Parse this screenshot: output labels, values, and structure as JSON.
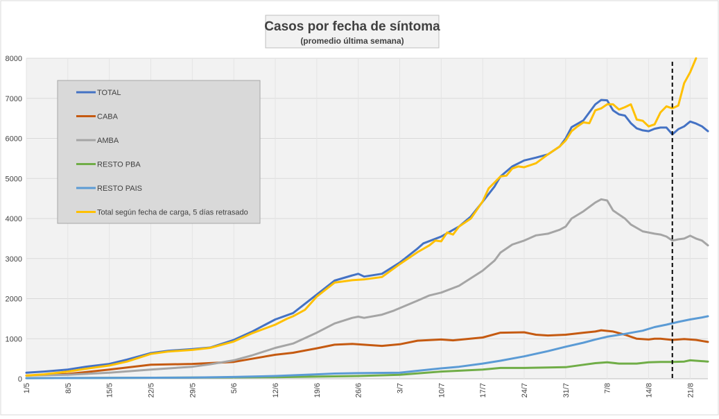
{
  "chart_data": {
    "type": "line",
    "title": "Casos por fecha de síntoma",
    "subtitle": "(promedio última semana)",
    "xlabel": "",
    "ylabel": "",
    "ylim": [
      0,
      8000
    ],
    "yticks": [
      0,
      1000,
      2000,
      3000,
      4000,
      5000,
      6000,
      7000,
      8000
    ],
    "grid": true,
    "legend_position": "top-left",
    "x_start_date": "1/5",
    "num_days": 115,
    "xtick_labels": [
      {
        "day": 0,
        "label": "1/5"
      },
      {
        "day": 7,
        "label": "8/5"
      },
      {
        "day": 14,
        "label": "15/5"
      },
      {
        "day": 21,
        "label": "22/5"
      },
      {
        "day": 28,
        "label": "29/5"
      },
      {
        "day": 35,
        "label": "5/6"
      },
      {
        "day": 42,
        "label": "12/6"
      },
      {
        "day": 49,
        "label": "19/6"
      },
      {
        "day": 56,
        "label": "26/6"
      },
      {
        "day": 63,
        "label": "3/7"
      },
      {
        "day": 70,
        "label": "10/7"
      },
      {
        "day": 77,
        "label": "17/7"
      },
      {
        "day": 84,
        "label": "24/7"
      },
      {
        "day": 91,
        "label": "31/7"
      },
      {
        "day": 98,
        "label": "7/8"
      },
      {
        "day": 105,
        "label": "14/8"
      },
      {
        "day": 112,
        "label": "21/8"
      }
    ],
    "reference_line_day": 109,
    "series": [
      {
        "name": "TOTAL",
        "color": "#4472c4",
        "points": [
          [
            0,
            150
          ],
          [
            3,
            180
          ],
          [
            7,
            230
          ],
          [
            10,
            300
          ],
          [
            14,
            370
          ],
          [
            17,
            480
          ],
          [
            21,
            640
          ],
          [
            24,
            700
          ],
          [
            28,
            740
          ],
          [
            31,
            780
          ],
          [
            35,
            970
          ],
          [
            38,
            1170
          ],
          [
            42,
            1480
          ],
          [
            45,
            1640
          ],
          [
            49,
            2100
          ],
          [
            52,
            2450
          ],
          [
            55,
            2580
          ],
          [
            56,
            2620
          ],
          [
            57,
            2550
          ],
          [
            60,
            2620
          ],
          [
            63,
            2900
          ],
          [
            66,
            3250
          ],
          [
            67,
            3380
          ],
          [
            70,
            3550
          ],
          [
            73,
            3800
          ],
          [
            75,
            4050
          ],
          [
            77,
            4420
          ],
          [
            79,
            4800
          ],
          [
            80,
            5050
          ],
          [
            82,
            5300
          ],
          [
            84,
            5450
          ],
          [
            86,
            5520
          ],
          [
            88,
            5600
          ],
          [
            90,
            5800
          ],
          [
            91,
            6000
          ],
          [
            92,
            6280
          ],
          [
            94,
            6450
          ],
          [
            96,
            6850
          ],
          [
            97,
            6960
          ],
          [
            98,
            6950
          ],
          [
            99,
            6700
          ],
          [
            100,
            6600
          ],
          [
            101,
            6570
          ],
          [
            102,
            6380
          ],
          [
            103,
            6250
          ],
          [
            104,
            6200
          ],
          [
            105,
            6180
          ],
          [
            106,
            6240
          ],
          [
            107,
            6270
          ],
          [
            108,
            6270
          ],
          [
            109,
            6100
          ],
          [
            110,
            6230
          ],
          [
            111,
            6300
          ],
          [
            112,
            6420
          ],
          [
            113,
            6370
          ],
          [
            114,
            6300
          ],
          [
            115,
            6180
          ]
        ]
      },
      {
        "name": "CABA",
        "color": "#c55a11",
        "points": [
          [
            0,
            80
          ],
          [
            7,
            120
          ],
          [
            14,
            230
          ],
          [
            21,
            350
          ],
          [
            28,
            370
          ],
          [
            35,
            420
          ],
          [
            42,
            600
          ],
          [
            45,
            650
          ],
          [
            49,
            760
          ],
          [
            52,
            850
          ],
          [
            55,
            870
          ],
          [
            58,
            840
          ],
          [
            60,
            820
          ],
          [
            63,
            860
          ],
          [
            66,
            950
          ],
          [
            70,
            980
          ],
          [
            72,
            960
          ],
          [
            77,
            1030
          ],
          [
            80,
            1150
          ],
          [
            84,
            1160
          ],
          [
            86,
            1100
          ],
          [
            88,
            1080
          ],
          [
            91,
            1100
          ],
          [
            94,
            1150
          ],
          [
            96,
            1180
          ],
          [
            97,
            1210
          ],
          [
            99,
            1180
          ],
          [
            101,
            1100
          ],
          [
            103,
            1000
          ],
          [
            105,
            980
          ],
          [
            106,
            1000
          ],
          [
            107,
            1000
          ],
          [
            109,
            970
          ],
          [
            111,
            990
          ],
          [
            113,
            970
          ],
          [
            115,
            920
          ]
        ]
      },
      {
        "name": "AMBA",
        "color": "#a5a5a5",
        "points": [
          [
            0,
            80
          ],
          [
            7,
            100
          ],
          [
            14,
            150
          ],
          [
            21,
            230
          ],
          [
            28,
            300
          ],
          [
            31,
            360
          ],
          [
            35,
            460
          ],
          [
            38,
            580
          ],
          [
            42,
            770
          ],
          [
            45,
            880
          ],
          [
            49,
            1150
          ],
          [
            52,
            1380
          ],
          [
            55,
            1520
          ],
          [
            56,
            1550
          ],
          [
            57,
            1520
          ],
          [
            60,
            1600
          ],
          [
            62,
            1700
          ],
          [
            66,
            1950
          ],
          [
            68,
            2080
          ],
          [
            70,
            2150
          ],
          [
            73,
            2320
          ],
          [
            77,
            2700
          ],
          [
            79,
            2950
          ],
          [
            80,
            3150
          ],
          [
            82,
            3350
          ],
          [
            84,
            3450
          ],
          [
            86,
            3580
          ],
          [
            88,
            3620
          ],
          [
            90,
            3720
          ],
          [
            91,
            3800
          ],
          [
            92,
            4000
          ],
          [
            94,
            4180
          ],
          [
            96,
            4400
          ],
          [
            97,
            4480
          ],
          [
            98,
            4450
          ],
          [
            99,
            4200
          ],
          [
            100,
            4100
          ],
          [
            101,
            4000
          ],
          [
            102,
            3850
          ],
          [
            104,
            3680
          ],
          [
            106,
            3620
          ],
          [
            107,
            3600
          ],
          [
            108,
            3550
          ],
          [
            109,
            3450
          ],
          [
            110,
            3480
          ],
          [
            111,
            3500
          ],
          [
            112,
            3570
          ],
          [
            113,
            3500
          ],
          [
            114,
            3450
          ],
          [
            115,
            3330
          ]
        ]
      },
      {
        "name": "RESTO PBA",
        "color": "#70ad47",
        "points": [
          [
            0,
            15
          ],
          [
            14,
            20
          ],
          [
            28,
            30
          ],
          [
            42,
            40
          ],
          [
            56,
            70
          ],
          [
            63,
            100
          ],
          [
            70,
            180
          ],
          [
            77,
            230
          ],
          [
            80,
            270
          ],
          [
            84,
            270
          ],
          [
            88,
            280
          ],
          [
            91,
            290
          ],
          [
            94,
            350
          ],
          [
            96,
            390
          ],
          [
            98,
            410
          ],
          [
            100,
            380
          ],
          [
            103,
            380
          ],
          [
            105,
            410
          ],
          [
            107,
            420
          ],
          [
            109,
            420
          ],
          [
            111,
            430
          ],
          [
            112,
            460
          ],
          [
            114,
            440
          ],
          [
            115,
            430
          ]
        ]
      },
      {
        "name": "RESTO PAIS",
        "color": "#5b9bd5",
        "points": [
          [
            0,
            15
          ],
          [
            14,
            20
          ],
          [
            28,
            30
          ],
          [
            35,
            45
          ],
          [
            42,
            70
          ],
          [
            49,
            110
          ],
          [
            52,
            130
          ],
          [
            56,
            140
          ],
          [
            63,
            150
          ],
          [
            66,
            200
          ],
          [
            70,
            260
          ],
          [
            73,
            300
          ],
          [
            77,
            380
          ],
          [
            80,
            450
          ],
          [
            84,
            560
          ],
          [
            88,
            690
          ],
          [
            91,
            800
          ],
          [
            94,
            900
          ],
          [
            96,
            980
          ],
          [
            98,
            1050
          ],
          [
            101,
            1120
          ],
          [
            104,
            1200
          ],
          [
            106,
            1290
          ],
          [
            108,
            1350
          ],
          [
            110,
            1420
          ],
          [
            112,
            1480
          ],
          [
            114,
            1530
          ],
          [
            115,
            1560
          ]
        ]
      },
      {
        "name": "Total según fecha de carga, 5 días retrasado",
        "color": "#ffc000",
        "points": [
          [
            0,
            80
          ],
          [
            3,
            110
          ],
          [
            7,
            180
          ],
          [
            10,
            250
          ],
          [
            14,
            330
          ],
          [
            17,
            430
          ],
          [
            21,
            620
          ],
          [
            24,
            680
          ],
          [
            28,
            720
          ],
          [
            31,
            770
          ],
          [
            35,
            930
          ],
          [
            38,
            1130
          ],
          [
            42,
            1350
          ],
          [
            44,
            1500
          ],
          [
            45,
            1560
          ],
          [
            47,
            1720
          ],
          [
            49,
            2050
          ],
          [
            52,
            2400
          ],
          [
            55,
            2460
          ],
          [
            57,
            2480
          ],
          [
            60,
            2540
          ],
          [
            63,
            2860
          ],
          [
            66,
            3160
          ],
          [
            68,
            3330
          ],
          [
            69,
            3450
          ],
          [
            70,
            3430
          ],
          [
            71,
            3650
          ],
          [
            72,
            3600
          ],
          [
            73,
            3800
          ],
          [
            75,
            4000
          ],
          [
            77,
            4430
          ],
          [
            78,
            4750
          ],
          [
            79,
            4900
          ],
          [
            80,
            5050
          ],
          [
            81,
            5070
          ],
          [
            82,
            5250
          ],
          [
            83,
            5300
          ],
          [
            84,
            5280
          ],
          [
            86,
            5380
          ],
          [
            88,
            5600
          ],
          [
            90,
            5800
          ],
          [
            91,
            5950
          ],
          [
            92,
            6180
          ],
          [
            93,
            6300
          ],
          [
            94,
            6400
          ],
          [
            95,
            6380
          ],
          [
            96,
            6700
          ],
          [
            97,
            6750
          ],
          [
            98,
            6850
          ],
          [
            99,
            6850
          ],
          [
            100,
            6720
          ],
          [
            101,
            6780
          ],
          [
            102,
            6850
          ],
          [
            103,
            6470
          ],
          [
            104,
            6440
          ],
          [
            105,
            6300
          ],
          [
            106,
            6350
          ],
          [
            107,
            6650
          ],
          [
            108,
            6800
          ],
          [
            109,
            6750
          ],
          [
            110,
            6820
          ],
          [
            111,
            7380
          ],
          [
            112,
            7650
          ],
          [
            113,
            8000
          ]
        ]
      }
    ]
  }
}
